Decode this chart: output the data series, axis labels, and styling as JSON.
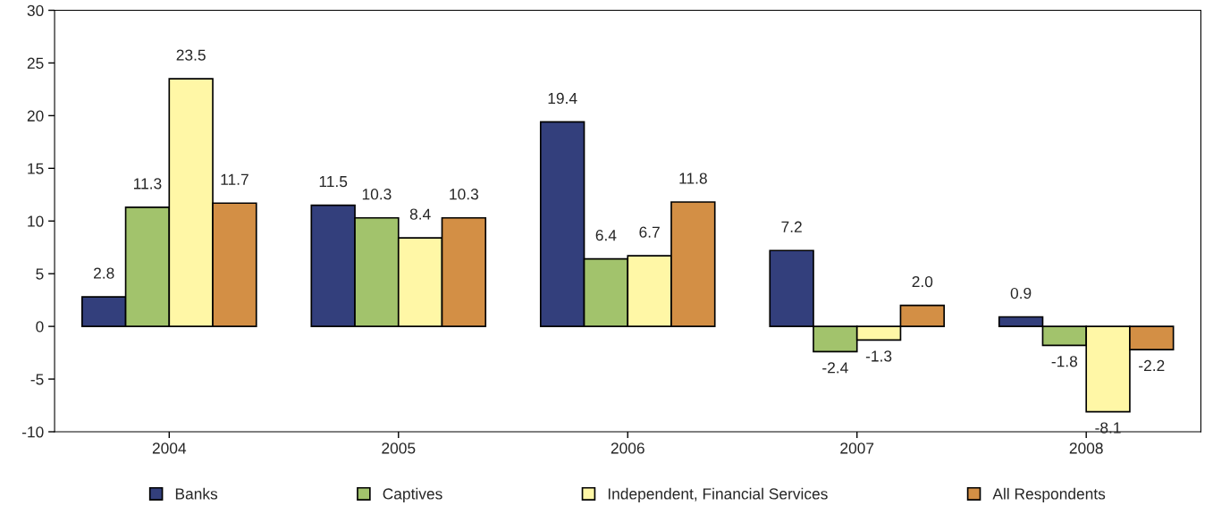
{
  "chart_data": {
    "type": "bar",
    "categories": [
      "2004",
      "2005",
      "2006",
      "2007",
      "2008"
    ],
    "series": [
      {
        "name": "Banks",
        "color": "#333f7c",
        "values": [
          2.8,
          11.5,
          19.4,
          7.2,
          0.9
        ],
        "value_labels": [
          "2.8",
          "11.5",
          "19.4",
          "7.2",
          "0.9"
        ]
      },
      {
        "name": "Captives",
        "color": "#a2c36c",
        "values": [
          11.3,
          10.3,
          6.4,
          -2.4,
          -1.8
        ],
        "value_labels": [
          "11.3",
          "10.3",
          "6.4",
          "-2.4",
          "-1.8"
        ]
      },
      {
        "name": "Independent, Financial Services",
        "color": "#fff7a6",
        "values": [
          23.5,
          8.4,
          6.7,
          -1.3,
          -8.1
        ],
        "value_labels": [
          "23.5",
          "8.4",
          "6.7",
          "-1.3",
          "-8.1"
        ]
      },
      {
        "name": "All Respondents",
        "color": "#d38f45",
        "values": [
          11.7,
          10.3,
          11.8,
          2.0,
          -2.2
        ],
        "value_labels": [
          "11.7",
          "10.3",
          "11.8",
          "2.0",
          "-2.2"
        ]
      }
    ],
    "ylim": [
      -10,
      30
    ],
    "yticks": [
      -10,
      -5,
      0,
      5,
      10,
      15,
      20,
      25,
      30
    ],
    "legend": "bottom",
    "grid": false
  }
}
